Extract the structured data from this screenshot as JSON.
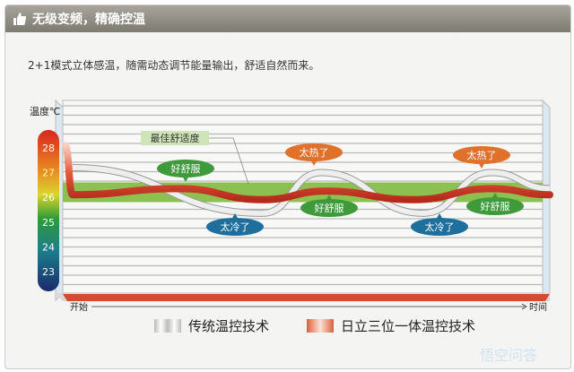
{
  "header": {
    "title": "无级变频，精确控温",
    "icon": "thumbs-up-icon"
  },
  "subtitle": "2+1模式立体感温，随需动态调节能量输出，舒适自然而来。",
  "chart_data": {
    "type": "line",
    "ylabel": "温度℃",
    "yticks": [
      "28",
      "27",
      "26",
      "25",
      "24",
      "23"
    ],
    "ylim": [
      22.5,
      29
    ],
    "xlabel_start": "开始",
    "xlabel_end": "时间",
    "comfort_band": {
      "label": "最佳舒适度",
      "range": [
        25.8,
        26.6
      ],
      "color": "#8cc152"
    },
    "series": [
      {
        "name": "传统温控技术",
        "color": "#c8c8c8",
        "x": [
          2,
          41,
          53,
          74,
          88,
          100
        ],
        "y": [
          27.2,
          25.35,
          27.0,
          25.35,
          27.0,
          26.35
        ]
      },
      {
        "name": "日立三位一体温控技术",
        "color": "#d9412b",
        "x": [
          0.5,
          2,
          24,
          41,
          54,
          72,
          88,
          100
        ],
        "y": [
          28.1,
          26.1,
          26.35,
          25.9,
          26.25,
          25.9,
          26.35,
          26.1
        ]
      }
    ],
    "annotations": [
      {
        "text": "好舒服",
        "kind": "good",
        "color": "#3f9a3c"
      },
      {
        "text": "太冷了",
        "kind": "cold",
        "color": "#1f6f9c"
      },
      {
        "text": "太热了",
        "kind": "hot",
        "color": "#e0712a"
      },
      {
        "text": "好舒服",
        "kind": "good",
        "color": "#3f9a3c"
      },
      {
        "text": "太冷了",
        "kind": "cold",
        "color": "#1f6f9c"
      },
      {
        "text": "太热了",
        "kind": "hot",
        "color": "#e0712a"
      },
      {
        "text": "好舒服",
        "kind": "good",
        "color": "#3f9a3c"
      }
    ]
  },
  "watermark": "悟空问答"
}
